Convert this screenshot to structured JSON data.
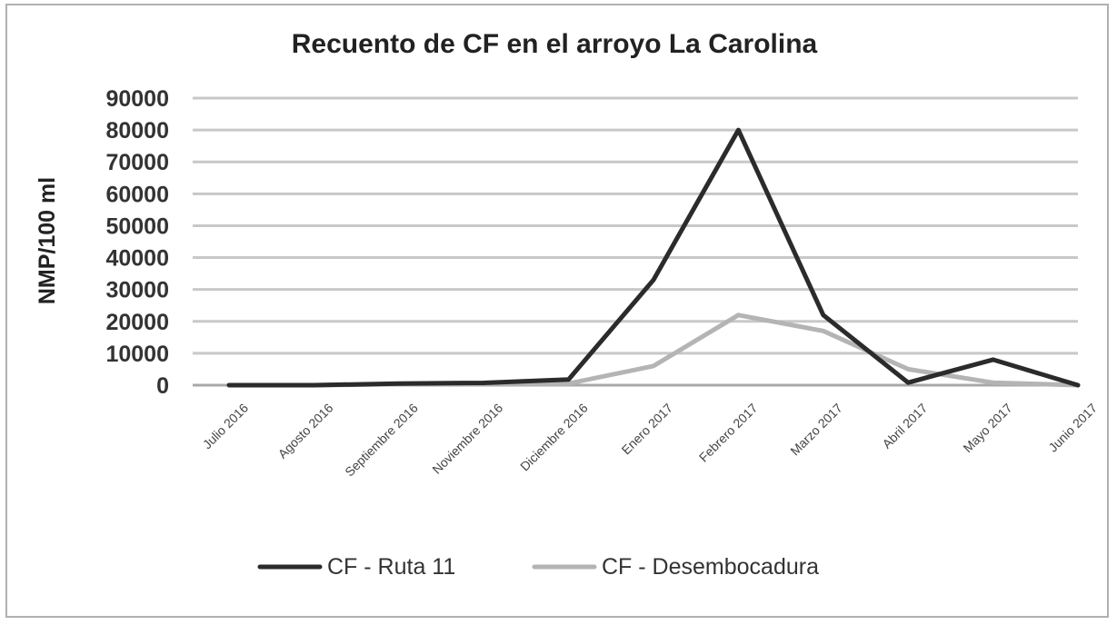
{
  "chart_data": {
    "type": "line",
    "title": "Recuento de CF en el arroyo La Carolina",
    "xlabel": "",
    "ylabel": "NMP/100 ml",
    "ylim": [
      0,
      90000
    ],
    "yticks": [
      0,
      10000,
      20000,
      30000,
      40000,
      50000,
      60000,
      70000,
      80000,
      90000
    ],
    "ytick_labels": [
      "0",
      "10000",
      "20000",
      "30000",
      "40000",
      "50000",
      "60000",
      "70000",
      "80000",
      "90000"
    ],
    "grid": true,
    "legend_position": "bottom",
    "categories": [
      "Julio 2016",
      "Agosto 2016",
      "Septiembre 2016",
      "Noviembre 2016",
      "Diciembre 2016",
      "Enero 2017",
      "Febrero 2017",
      "Marzo 2017",
      "Abril 2017",
      "Mayo 2017",
      "Junio 2017"
    ],
    "series": [
      {
        "name": "CF - Ruta 11",
        "color": "#2b2b2b",
        "values": [
          0,
          0,
          500,
          700,
          1800,
          33000,
          80000,
          22000,
          800,
          8000,
          0
        ]
      },
      {
        "name": "CF - Desembocadura",
        "color": "#b4b4b4",
        "values": [
          0,
          0,
          300,
          500,
          500,
          6000,
          22000,
          17000,
          5000,
          800,
          0
        ]
      }
    ]
  }
}
